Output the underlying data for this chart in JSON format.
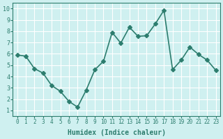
{
  "x": [
    0,
    1,
    2,
    3,
    4,
    5,
    6,
    7,
    8,
    9,
    10,
    11,
    12,
    13,
    14,
    15,
    16,
    17,
    18,
    19,
    20,
    21,
    22,
    23
  ],
  "y": [
    5.9,
    5.8,
    4.7,
    4.3,
    3.2,
    2.7,
    1.8,
    1.3,
    2.8,
    4.6,
    5.35,
    7.9,
    6.95,
    8.35,
    7.55,
    7.6,
    8.65,
    9.85,
    4.6,
    5.45,
    6.6,
    5.95,
    5.45,
    4.55
  ],
  "line_color": "#2d7d6e",
  "marker": "D",
  "marker_size": 3,
  "linewidth": 1.2,
  "xlabel": "Humidex (Indice chaleur)",
  "xlim": [
    -0.5,
    23.5
  ],
  "ylim": [
    0.5,
    10.5
  ],
  "yticks": [
    1,
    2,
    3,
    4,
    5,
    6,
    7,
    8,
    9,
    10
  ],
  "xticks": [
    0,
    1,
    2,
    3,
    4,
    5,
    6,
    7,
    8,
    9,
    10,
    11,
    12,
    13,
    14,
    15,
    16,
    17,
    18,
    19,
    20,
    21,
    22,
    23
  ],
  "bg_color": "#cff0f0",
  "grid_color": "#ffffff",
  "axes_color": "#2d7d6e",
  "tick_color": "#2d7d6e",
  "label_color": "#2d7d6e"
}
